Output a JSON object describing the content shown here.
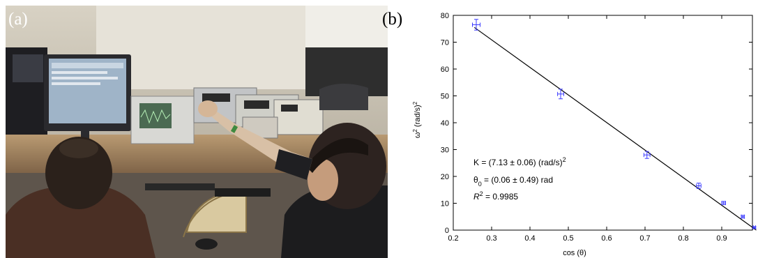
{
  "panels": {
    "left_label": "(a)",
    "right_label": "(b)"
  },
  "colors": {
    "points": "#3a3aff",
    "fit_line": "#000000"
  },
  "chart_data": {
    "type": "scatter",
    "xlabel": "cos (θ)",
    "ylabel_base": "ω",
    "ylabel_sup1": "2",
    "ylabel_mid": " (rad/s)",
    "ylabel_sup2": "2",
    "xlim": [
      0.2,
      0.98
    ],
    "ylim": [
      0,
      80
    ],
    "x_ticks": [
      0.2,
      0.3,
      0.4,
      0.5,
      0.6,
      0.7,
      0.8,
      0.9
    ],
    "x_tick_labels": [
      "0.2",
      "0.3",
      "0.4",
      "0.5",
      "0.6",
      "0.7",
      "0.8",
      "0.9"
    ],
    "y_ticks": [
      0,
      10,
      20,
      30,
      40,
      50,
      60,
      70,
      80
    ],
    "y_tick_labels": [
      "0",
      "10",
      "20",
      "30",
      "40",
      "50",
      "60",
      "70",
      "80"
    ],
    "points": [
      {
        "x": 0.26,
        "y": 76.5,
        "yerr": 2.0,
        "xerr": 0.01
      },
      {
        "x": 0.48,
        "y": 50.7,
        "yerr": 1.8,
        "xerr": 0.008
      },
      {
        "x": 0.705,
        "y": 28.0,
        "yerr": 1.3,
        "xerr": 0.008
      },
      {
        "x": 0.84,
        "y": 16.5,
        "yerr": 1.0,
        "xerr": 0.006
      },
      {
        "x": 0.905,
        "y": 10.1,
        "yerr": 0.6,
        "xerr": 0.005
      },
      {
        "x": 0.955,
        "y": 5.0,
        "yerr": 0.5,
        "xerr": 0.004
      },
      {
        "x": 0.985,
        "y": 1.0,
        "yerr": 0.3,
        "xerr": 0.003
      }
    ],
    "fit_line": {
      "x": [
        0.255,
        0.99
      ],
      "y": [
        75.5,
        0.0
      ]
    },
    "annotations": {
      "k_line": "K = (7.13 ± 0.06) (rad/s)",
      "k_sup": "2",
      "theta_base": "θ",
      "theta_sub": "0",
      "theta_rest": " = (0.06 ± 0.49) rad",
      "r2_base": "R",
      "r2_sup": "2",
      "r2_rest": " = 0.9985"
    }
  }
}
